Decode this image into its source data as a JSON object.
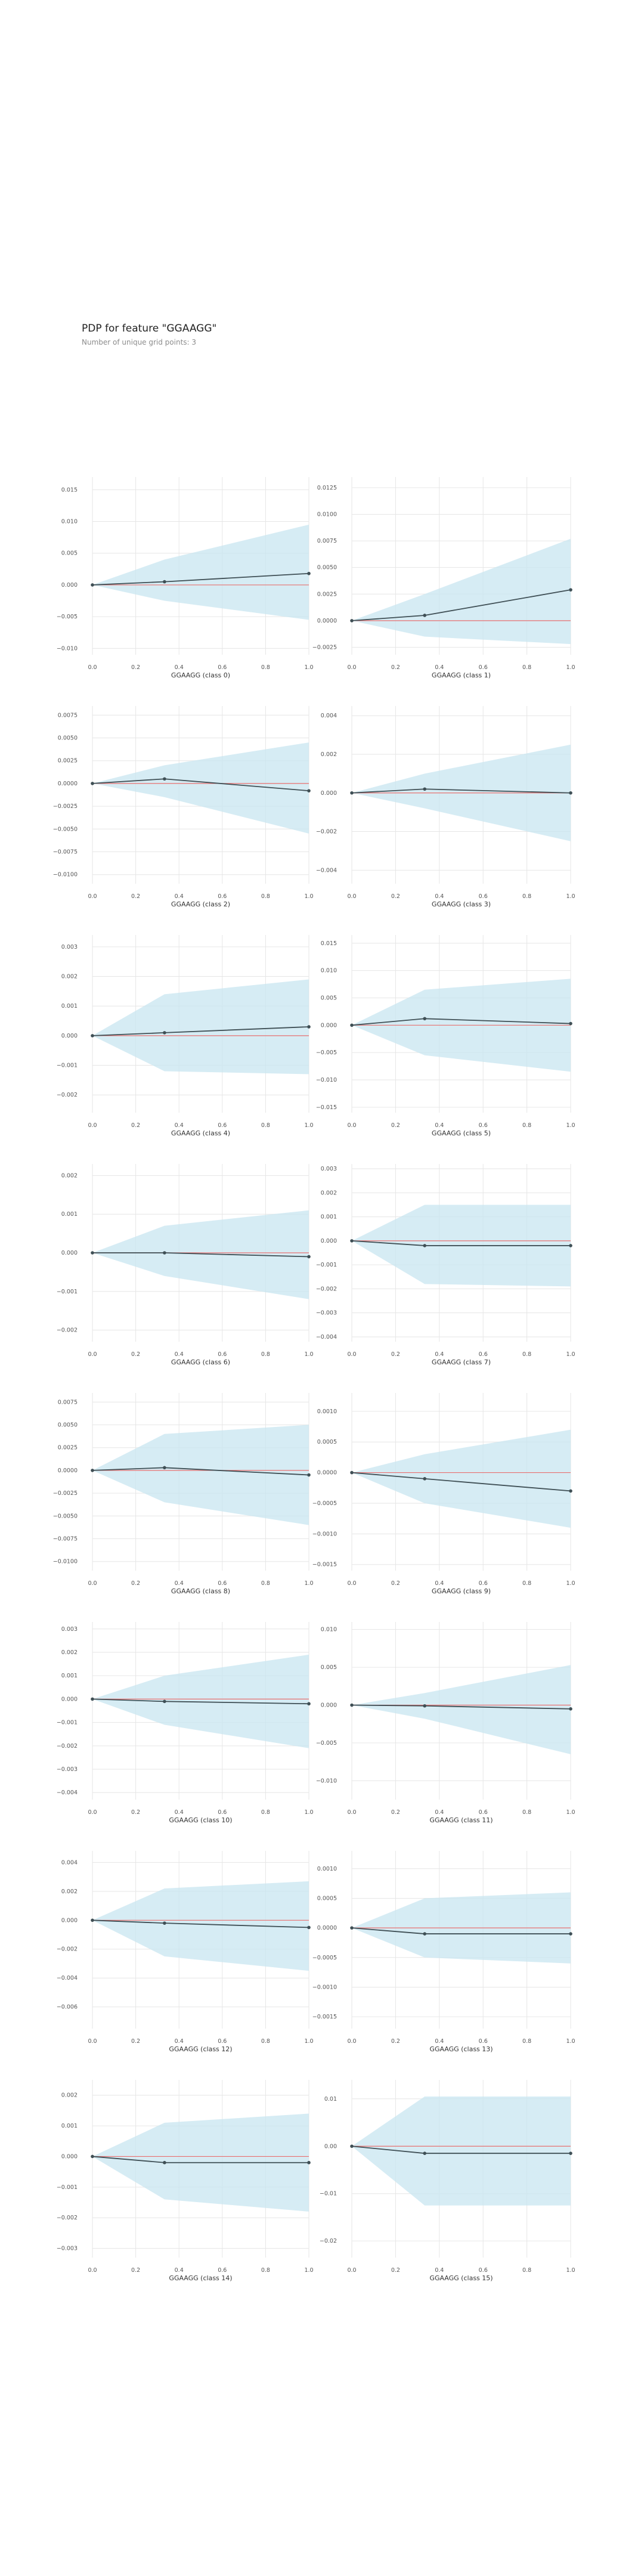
{
  "title": "PDP for feature \"GGAAGG\"",
  "subtitle": "Number of unique grid points: 3",
  "colors": {
    "band": "#c8e5f0",
    "line": "#3f4f55",
    "zero": "#e87070",
    "grid": "#e6e6e6"
  },
  "chart_data": [
    {
      "type": "line",
      "xlabel": "GGAAGG (class 0)",
      "x": [
        0,
        0.333,
        1
      ],
      "y": [
        0,
        0.0005,
        0.0018
      ],
      "lower": [
        0,
        -0.0025,
        -0.0055
      ],
      "upper": [
        0,
        0.004,
        0.0095
      ],
      "ylim": [
        -0.011,
        0.017
      ],
      "yticks": [
        "0.015",
        "0.010",
        "0.005",
        "0.000",
        "−0.005",
        "−0.010"
      ],
      "ytick_values": [
        0.015,
        0.01,
        0.005,
        0,
        -0.005,
        -0.01
      ],
      "xticks": [
        "0.0",
        "0.2",
        "0.4",
        "0.6",
        "0.8",
        "1.0"
      ]
    },
    {
      "type": "line",
      "xlabel": "GGAAGG (class 1)",
      "x": [
        0,
        0.333,
        1
      ],
      "y": [
        0,
        0.0005,
        0.0029
      ],
      "lower": [
        0,
        -0.0015,
        -0.0022
      ],
      "upper": [
        0,
        0.0025,
        0.0077
      ],
      "ylim": [
        -0.0032,
        0.0135
      ],
      "yticks": [
        "0.0125",
        "0.0100",
        "0.0075",
        "0.0050",
        "0.0025",
        "0.0000",
        "−0.0025"
      ],
      "ytick_values": [
        0.0125,
        0.01,
        0.0075,
        0.005,
        0.0025,
        0,
        -0.0025
      ],
      "xticks": [
        "0.0",
        "0.2",
        "0.4",
        "0.6",
        "0.8",
        "1.0"
      ]
    },
    {
      "type": "line",
      "xlabel": "GGAAGG (class 2)",
      "x": [
        0,
        0.333,
        1
      ],
      "y": [
        0,
        0.0005,
        -0.0008
      ],
      "lower": [
        0,
        -0.0015,
        -0.0055
      ],
      "upper": [
        0,
        0.002,
        0.0045
      ],
      "ylim": [
        -0.011,
        0.0085
      ],
      "yticks": [
        "0.0075",
        "0.0050",
        "0.0025",
        "0.0000",
        "−0.0025",
        "−0.0050",
        "−0.0075",
        "−0.0100"
      ],
      "ytick_values": [
        0.0075,
        0.005,
        0.0025,
        0,
        -0.0025,
        -0.005,
        -0.0075,
        -0.01
      ],
      "xticks": [
        "0.0",
        "0.2",
        "0.4",
        "0.6",
        "0.8",
        "1.0"
      ]
    },
    {
      "type": "line",
      "xlabel": "GGAAGG (class 3)",
      "x": [
        0,
        0.333,
        1
      ],
      "y": [
        0,
        0.0002,
        0.0
      ],
      "lower": [
        0,
        -0.0008,
        -0.0025
      ],
      "upper": [
        0,
        0.001,
        0.0025
      ],
      "ylim": [
        -0.0047,
        0.0045
      ],
      "yticks": [
        "0.004",
        "0.002",
        "0.000",
        "−0.002",
        "−0.004"
      ],
      "ytick_values": [
        0.004,
        0.002,
        0,
        -0.002,
        -0.004
      ],
      "xticks": [
        "0.0",
        "0.2",
        "0.4",
        "0.6",
        "0.8",
        "1.0"
      ]
    },
    {
      "type": "line",
      "xlabel": "GGAAGG (class 4)",
      "x": [
        0,
        0.333,
        1
      ],
      "y": [
        0,
        0.0001,
        0.0003
      ],
      "lower": [
        0,
        -0.0012,
        -0.0013
      ],
      "upper": [
        0,
        0.0014,
        0.0019
      ],
      "ylim": [
        -0.0026,
        0.0034
      ],
      "yticks": [
        "0.003",
        "0.002",
        "0.001",
        "0.000",
        "−0.001",
        "−0.002"
      ],
      "ytick_values": [
        0.003,
        0.002,
        0.001,
        0,
        -0.001,
        -0.002
      ],
      "xticks": [
        "0.0",
        "0.2",
        "0.4",
        "0.6",
        "0.8",
        "1.0"
      ]
    },
    {
      "type": "line",
      "xlabel": "GGAAGG (class 5)",
      "x": [
        0,
        0.333,
        1
      ],
      "y": [
        0,
        0.0012,
        0.0003
      ],
      "lower": [
        0,
        -0.0055,
        -0.0085
      ],
      "upper": [
        0,
        0.0065,
        0.0085
      ],
      "ylim": [
        -0.016,
        0.0165
      ],
      "yticks": [
        "0.015",
        "0.010",
        "0.005",
        "0.000",
        "−0.005",
        "−0.010",
        "−0.015"
      ],
      "ytick_values": [
        0.015,
        0.01,
        0.005,
        0,
        -0.005,
        -0.01,
        -0.015
      ],
      "xticks": [
        "0.0",
        "0.2",
        "0.4",
        "0.6",
        "0.8",
        "1.0"
      ]
    },
    {
      "type": "line",
      "xlabel": "GGAAGG (class 6)",
      "x": [
        0,
        0.333,
        1
      ],
      "y": [
        0,
        0.0,
        -0.0001
      ],
      "lower": [
        0,
        -0.0006,
        -0.0012
      ],
      "upper": [
        0,
        0.0007,
        0.0011
      ],
      "ylim": [
        -0.0023,
        0.0023
      ],
      "yticks": [
        "0.002",
        "0.001",
        "0.000",
        "−0.001",
        "−0.002"
      ],
      "ytick_values": [
        0.002,
        0.001,
        0,
        -0.001,
        -0.002
      ],
      "xticks": [
        "0.0",
        "0.2",
        "0.4",
        "0.6",
        "0.8",
        "1.0"
      ]
    },
    {
      "type": "line",
      "xlabel": "GGAAGG (class 7)",
      "x": [
        0,
        0.333,
        1
      ],
      "y": [
        0,
        -0.0002,
        -0.0002
      ],
      "lower": [
        0,
        -0.0018,
        -0.0019
      ],
      "upper": [
        0,
        0.0015,
        0.0015
      ],
      "ylim": [
        -0.0042,
        0.0032
      ],
      "yticks": [
        "0.003",
        "0.002",
        "0.001",
        "0.000",
        "−0.001",
        "−0.002",
        "−0.003",
        "−0.004"
      ],
      "ytick_values": [
        0.003,
        0.002,
        0.001,
        0,
        -0.001,
        -0.002,
        -0.003,
        -0.004
      ],
      "xticks": [
        "0.0",
        "0.2",
        "0.4",
        "0.6",
        "0.8",
        "1.0"
      ]
    },
    {
      "type": "line",
      "xlabel": "GGAAGG (class 8)",
      "x": [
        0,
        0.333,
        1
      ],
      "y": [
        0,
        0.0003,
        -0.0005
      ],
      "lower": [
        0,
        -0.0035,
        -0.006
      ],
      "upper": [
        0,
        0.004,
        0.005
      ],
      "ylim": [
        -0.011,
        0.0085
      ],
      "yticks": [
        "0.0075",
        "0.0050",
        "0.0025",
        "0.0000",
        "−0.0025",
        "−0.0050",
        "−0.0075",
        "−0.0100"
      ],
      "ytick_values": [
        0.0075,
        0.005,
        0.0025,
        0,
        -0.0025,
        -0.005,
        -0.0075,
        -0.01
      ],
      "xticks": [
        "0.0",
        "0.2",
        "0.4",
        "0.6",
        "0.8",
        "1.0"
      ]
    },
    {
      "type": "line",
      "xlabel": "GGAAGG (class 9)",
      "x": [
        0,
        0.333,
        1
      ],
      "y": [
        0,
        -0.0001,
        -0.0003
      ],
      "lower": [
        0,
        -0.0005,
        -0.0009
      ],
      "upper": [
        0,
        0.0003,
        0.0007
      ],
      "ylim": [
        -0.0016,
        0.0013
      ],
      "yticks": [
        "0.0010",
        "0.0005",
        "0.0000",
        "−0.0005",
        "−0.0010",
        "−0.0015"
      ],
      "ytick_values": [
        0.001,
        0.0005,
        0,
        -0.0005,
        -0.001,
        -0.0015
      ],
      "xticks": [
        "0.0",
        "0.2",
        "0.4",
        "0.6",
        "0.8",
        "1.0"
      ]
    },
    {
      "type": "line",
      "xlabel": "GGAAGG (class 10)",
      "x": [
        0,
        0.333,
        1
      ],
      "y": [
        0,
        -0.0001,
        -0.0002
      ],
      "lower": [
        0,
        -0.0011,
        -0.0021
      ],
      "upper": [
        0,
        0.001,
        0.0019
      ],
      "ylim": [
        -0.0043,
        0.0033
      ],
      "yticks": [
        "0.003",
        "0.002",
        "0.001",
        "0.000",
        "−0.001",
        "−0.002",
        "−0.003",
        "−0.004"
      ],
      "ytick_values": [
        0.003,
        0.002,
        0.001,
        0,
        -0.001,
        -0.002,
        -0.003,
        -0.004
      ],
      "xticks": [
        "0.0",
        "0.2",
        "0.4",
        "0.6",
        "0.8",
        "1.0"
      ]
    },
    {
      "type": "line",
      "xlabel": "GGAAGG (class 11)",
      "x": [
        0,
        0.333,
        1
      ],
      "y": [
        0,
        -0.0001,
        -0.0005
      ],
      "lower": [
        0,
        -0.0018,
        -0.0065
      ],
      "upper": [
        0,
        0.0016,
        0.0053
      ],
      "ylim": [
        -0.0125,
        0.011
      ],
      "yticks": [
        "0.010",
        "0.005",
        "0.000",
        "−0.005",
        "−0.010"
      ],
      "ytick_values": [
        0.01,
        0.005,
        0,
        -0.005,
        -0.01
      ],
      "xticks": [
        "0.0",
        "0.2",
        "0.4",
        "0.6",
        "0.8",
        "1.0"
      ]
    },
    {
      "type": "line",
      "xlabel": "GGAAGG (class 12)",
      "x": [
        0,
        0.333,
        1
      ],
      "y": [
        0,
        -0.0002,
        -0.0005
      ],
      "lower": [
        0,
        -0.0025,
        -0.0035
      ],
      "upper": [
        0,
        0.0022,
        0.0027
      ],
      "ylim": [
        -0.0075,
        0.0048
      ],
      "yticks": [
        "0.004",
        "0.002",
        "0.000",
        "−0.002",
        "−0.004",
        "−0.006"
      ],
      "ytick_values": [
        0.004,
        0.002,
        0,
        -0.002,
        -0.004,
        -0.006
      ],
      "xticks": [
        "0.0",
        "0.2",
        "0.4",
        "0.6",
        "0.8",
        "1.0"
      ]
    },
    {
      "type": "line",
      "xlabel": "GGAAGG (class 13)",
      "x": [
        0,
        0.333,
        1
      ],
      "y": [
        0,
        -0.0001,
        -0.0001
      ],
      "lower": [
        0,
        -0.0005,
        -0.0006
      ],
      "upper": [
        0,
        0.0005,
        0.0006
      ],
      "ylim": [
        -0.0017,
        0.0013
      ],
      "yticks": [
        "0.0010",
        "0.0005",
        "0.0000",
        "−0.0005",
        "−0.0010",
        "−0.0015"
      ],
      "ytick_values": [
        0.001,
        0.0005,
        0,
        -0.0005,
        -0.001,
        -0.0015
      ],
      "xticks": [
        "0.0",
        "0.2",
        "0.4",
        "0.6",
        "0.8",
        "1.0"
      ]
    },
    {
      "type": "line",
      "xlabel": "GGAAGG (class 14)",
      "x": [
        0,
        0.333,
        1
      ],
      "y": [
        0,
        -0.0002,
        -0.0002
      ],
      "lower": [
        0,
        -0.0014,
        -0.0018
      ],
      "upper": [
        0,
        0.0011,
        0.0014
      ],
      "ylim": [
        -0.0033,
        0.0025
      ],
      "yticks": [
        "0.002",
        "0.001",
        "0.000",
        "−0.001",
        "−0.002",
        "−0.003"
      ],
      "ytick_values": [
        0.002,
        0.001,
        0,
        -0.001,
        -0.002,
        -0.003
      ],
      "xticks": [
        "0.0",
        "0.2",
        "0.4",
        "0.6",
        "0.8",
        "1.0"
      ]
    },
    {
      "type": "line",
      "xlabel": "GGAAGG (class 15)",
      "x": [
        0,
        0.333,
        1
      ],
      "y": [
        0,
        -0.0015,
        -0.0015
      ],
      "lower": [
        0,
        -0.0125,
        -0.0125
      ],
      "upper": [
        0,
        0.0105,
        0.0105
      ],
      "ylim": [
        -0.0235,
        0.014
      ],
      "yticks": [
        "0.01",
        "0.00",
        "−0.01",
        "−0.02"
      ],
      "ytick_values": [
        0.01,
        0,
        -0.01,
        -0.02
      ],
      "xticks": [
        "0.0",
        "0.2",
        "0.4",
        "0.6",
        "0.8",
        "1.0"
      ]
    }
  ]
}
